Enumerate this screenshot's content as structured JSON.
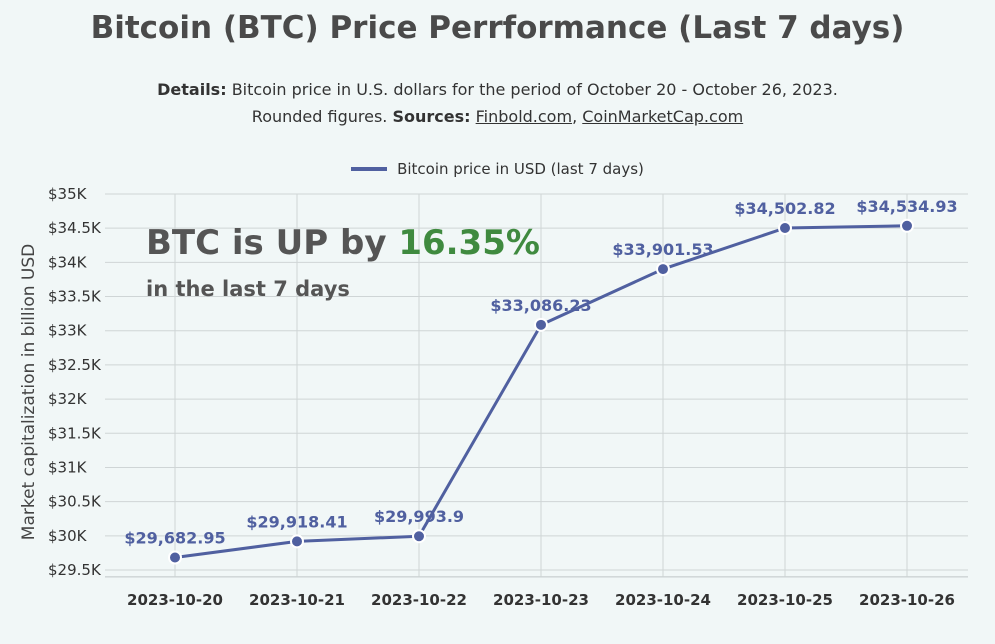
{
  "chart_data": {
    "type": "line",
    "title": "Bitcoin (BTC) Price Perrformance (Last 7 days)",
    "subtitle": {
      "details_label": "Details:",
      "details_text": "Bitcoin price in U.S. dollars for the period of October 20 - October 26, 2023.",
      "rounded_text": "Rounded figures.",
      "sources_label": "Sources:",
      "source_1": "Finbold.com",
      "source_sep": ",",
      "source_2": "CoinMarketCap.com"
    },
    "ylabel": "Market capitalization in billion USD",
    "xlabel": "",
    "ylim": [
      29400,
      35000
    ],
    "y_ticks": [
      29500,
      30000,
      30500,
      31000,
      31500,
      32000,
      32500,
      33000,
      33500,
      34000,
      34500,
      35000
    ],
    "y_tick_labels": [
      "$29.5K",
      "$30K",
      "$30.5K",
      "$31K",
      "$31.5K",
      "$32K",
      "$32.5K",
      "$33K",
      "$33.5K",
      "$34K",
      "$34.5K",
      "$35K"
    ],
    "categories": [
      "2023-10-20",
      "2023-10-21",
      "2023-10-22",
      "2023-10-23",
      "2023-10-24",
      "2023-10-25",
      "2023-10-26"
    ],
    "series": [
      {
        "name": "Bitcoin price in USD (last 7 days)",
        "values": [
          29682.95,
          29918.41,
          29993.9,
          33086.23,
          33901.53,
          34502.82,
          34534.93
        ],
        "labels": [
          "$29,682.95",
          "$29,918.41",
          "$29,993.9",
          "$33,086.23",
          "$33,901.53",
          "$34,502.82",
          "$34,534.93"
        ],
        "color": "#5060a0"
      }
    ],
    "annotation": {
      "line1_prefix": "BTC is UP by ",
      "line1_pct": "16.35%",
      "line2": "in the last 7 days",
      "pct_color": "#3f8a3f"
    },
    "grid": true,
    "legend_position": "top-center"
  }
}
